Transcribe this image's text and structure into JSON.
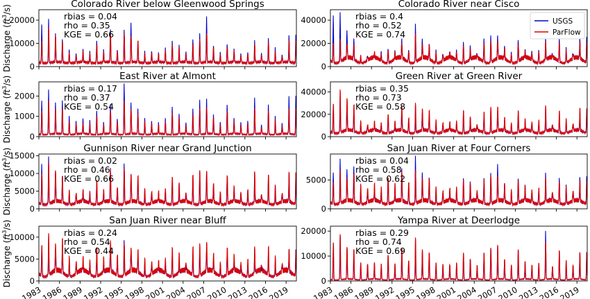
{
  "chart_data": {
    "type": "line",
    "x_ticks": [
      "1983",
      "1986",
      "1989",
      "1992",
      "1995",
      "1998",
      "2001",
      "2004",
      "2007",
      "2010",
      "2013",
      "2016",
      "2019"
    ],
    "x_range": [
      1983,
      2020.5
    ],
    "ylabel": "Discharge (ft³/s)",
    "ylabel_main": "Discharge (",
    "ylabel_unit": "ft",
    "ylabel_exp": "3",
    "ylabel_tail": "/s)",
    "legend": {
      "placement": "top-right",
      "entries": [
        {
          "name": "USGS",
          "color": "#0000cc"
        },
        {
          "name": "ParFlow",
          "color": "#dd0000"
        }
      ]
    },
    "panels": [
      {
        "title": "Colorado River below Gleenwood Springs",
        "ylim": [
          0,
          24500
        ],
        "yticks": [
          0,
          10000,
          20000
        ],
        "ytick_labels": [
          "0",
          "10000",
          "20000"
        ],
        "stats": [
          "rbias = 0.04",
          "rho = 0.35",
          "KGE = 0.66"
        ],
        "usgs_peaks": [
          18500,
          20200,
          14500,
          12000,
          7000,
          6000,
          7500,
          6500,
          11500,
          7200,
          16000,
          7500,
          15500,
          19200,
          11000,
          6500,
          7000,
          6000,
          8000,
          11500,
          9000,
          6500,
          12000,
          14000,
          22000,
          9000,
          6000,
          10000,
          7500,
          5500,
          6500,
          11000,
          6000,
          12500,
          8000,
          5500,
          13500
        ],
        "parflow_peaks": [
          12000,
          18000,
          15000,
          11500,
          6000,
          5500,
          7000,
          6000,
          10500,
          6500,
          15500,
          7000,
          15000,
          14500,
          12000,
          6000,
          6500,
          5500,
          7500,
          10500,
          8500,
          6000,
          10500,
          12500,
          16000,
          8500,
          5500,
          9000,
          7000,
          5000,
          6000,
          10000,
          5500,
          11500,
          7000,
          5000,
          12000
        ],
        "base": [
          1500,
          2000
        ]
      },
      {
        "title": "Colorado River near Cisco",
        "ylim": [
          0,
          49000
        ],
        "yticks": [
          0,
          20000,
          40000
        ],
        "ytick_labels": [
          "0",
          "20000",
          "40000"
        ],
        "stats": [
          "rbias = 0.4",
          "rho = 0.52",
          "KGE = 0.74"
        ],
        "usgs_peaks": [
          45000,
          46000,
          32000,
          25000,
          9000,
          10000,
          11000,
          12500,
          16000,
          13000,
          24000,
          15000,
          36000,
          25000,
          20000,
          14000,
          12000,
          12000,
          14000,
          22000,
          17000,
          11000,
          25000,
          26000,
          28000,
          18000,
          12000,
          24000,
          14000,
          13000,
          15000,
          24000,
          11000,
          25000,
          16000,
          12000,
          25000
        ],
        "parflow_peaks": [
          22000,
          25000,
          22000,
          20000,
          10000,
          9000,
          12000,
          11000,
          15000,
          12000,
          22000,
          14000,
          30000,
          22000,
          19000,
          13000,
          11000,
          11000,
          13000,
          20000,
          15000,
          10000,
          22000,
          23000,
          25000,
          16000,
          11000,
          21000,
          13000,
          12000,
          14000,
          22000,
          10000,
          22000,
          15000,
          11000,
          22000
        ],
        "base": [
          3000,
          8000
        ]
      },
      {
        "title": "East River at Almont",
        "ylim": [
          0,
          2700
        ],
        "yticks": [
          0,
          1000,
          2000
        ],
        "ytick_labels": [
          "0",
          "1000",
          "2000"
        ],
        "stats": [
          "rbias = 0.17",
          "rho = 0.37",
          "KGE = 0.54"
        ],
        "usgs_peaks": [
          1800,
          2300,
          1700,
          1800,
          1000,
          800,
          900,
          800,
          1300,
          700,
          1600,
          900,
          2600,
          1700,
          1400,
          900,
          800,
          700,
          900,
          1500,
          1100,
          700,
          1400,
          1800,
          1900,
          1100,
          700,
          1600,
          900,
          700,
          800,
          1900,
          600,
          1600,
          1000,
          700,
          2000
        ],
        "parflow_peaks": [
          1400,
          1900,
          1500,
          1500,
          800,
          700,
          700,
          700,
          1100,
          600,
          1400,
          800,
          1900,
          1500,
          1200,
          800,
          700,
          600,
          800,
          1300,
          1000,
          600,
          1200,
          1500,
          1600,
          1000,
          600,
          1400,
          800,
          600,
          700,
          1500,
          500,
          1400,
          900,
          600,
          1500
        ],
        "base": [
          100,
          150
        ]
      },
      {
        "title": "Green River at Green River",
        "ylim": [
          0,
          49000
        ],
        "yticks": [
          0,
          20000,
          40000
        ],
        "ytick_labels": [
          "0",
          "20000",
          "40000"
        ],
        "stats": [
          "rbias = 0.35",
          "rho = 0.73",
          "KGE = 0.58"
        ],
        "usgs_peaks": [
          30000,
          36000,
          28000,
          25000,
          12000,
          10000,
          11000,
          12000,
          18000,
          12000,
          24000,
          15000,
          27000,
          22000,
          20000,
          13000,
          12000,
          11000,
          13000,
          21000,
          15000,
          10000,
          20000,
          23000,
          24000,
          15000,
          11000,
          21000,
          13000,
          12000,
          13000,
          25000,
          10000,
          20000,
          14000,
          11000,
          22000
        ],
        "parflow_peaks": [
          32000,
          45000,
          38000,
          31000,
          15000,
          12000,
          14000,
          13000,
          22000,
          14000,
          30000,
          18000,
          32000,
          28000,
          25000,
          16000,
          14000,
          13000,
          15000,
          26000,
          18000,
          12000,
          24000,
          28000,
          30000,
          18000,
          13000,
          26000,
          16000,
          14000,
          16000,
          29000,
          12000,
          25000,
          17000,
          13000,
          27000
        ],
        "base": [
          3000,
          6000
        ]
      },
      {
        "title": "Gunnison River near Grand Junction",
        "ylim": [
          0,
          15500
        ],
        "yticks": [
          0,
          5000,
          10000,
          15000
        ],
        "ytick_labels": [
          "0",
          "5000",
          "10000",
          "15000"
        ],
        "stats": [
          "rbias = 0.02",
          "rho = 0.46",
          "KGE = 0.66"
        ],
        "usgs_peaks": [
          13000,
          14500,
          11000,
          9500,
          5000,
          4500,
          5000,
          4800,
          8000,
          5000,
          11500,
          6000,
          12500,
          10000,
          9000,
          5500,
          5000,
          4500,
          5500,
          9000,
          7000,
          4500,
          9500,
          10500,
          11000,
          7000,
          4500,
          9500,
          6000,
          4500,
          5500,
          10000,
          4000,
          9500,
          6500,
          4500,
          10000
        ],
        "parflow_peaks": [
          11000,
          14000,
          12000,
          10000,
          5500,
          5000,
          5500,
          5000,
          9000,
          5500,
          12000,
          6500,
          12000,
          11000,
          10000,
          6000,
          5500,
          5000,
          6000,
          10000,
          7500,
          5000,
          10500,
          11500,
          12000,
          7500,
          5000,
          10500,
          6500,
          5000,
          6000,
          11000,
          4500,
          10500,
          7000,
          5000,
          11000
        ],
        "base": [
          1200,
          2200
        ]
      },
      {
        "title": "San Juan River at Four Corners",
        "ylim": [
          0,
          9500
        ],
        "yticks": [
          0,
          5000
        ],
        "ytick_labels": [
          "0",
          "5000"
        ],
        "stats": [
          "rbias = 0.04",
          "rho = 0.58",
          "KGE = 0.62"
        ],
        "usgs_peaks": [
          6500,
          8500,
          7000,
          7500,
          3500,
          3000,
          3500,
          3200,
          5500,
          3500,
          7000,
          4000,
          9000,
          6500,
          5500,
          3500,
          3000,
          3000,
          3500,
          5500,
          4500,
          3000,
          5500,
          6000,
          8000,
          4500,
          3000,
          5500,
          4000,
          3000,
          3500,
          6000,
          2800,
          5500,
          4000,
          3000,
          5500
        ],
        "parflow_peaks": [
          5000,
          7000,
          6000,
          6500,
          4500,
          4000,
          4500,
          4000,
          6000,
          4500,
          7000,
          5000,
          7000,
          6000,
          5500,
          4000,
          3500,
          3500,
          4000,
          5500,
          4500,
          3500,
          5500,
          6000,
          6500,
          4500,
          3500,
          5500,
          4000,
          3500,
          4000,
          5500,
          3200,
          5000,
          4000,
          3500,
          5000
        ],
        "base": [
          800,
          1500
        ]
      },
      {
        "title": "San Juan River near Bluff",
        "ylim": [
          0,
          12500
        ],
        "yticks": [
          0,
          5000,
          10000
        ],
        "ytick_labels": [
          "0",
          "5000",
          "10000"
        ],
        "stats": [
          "rbias = 0.24",
          "rho = 0.54",
          "KGE = 0.44"
        ],
        "usgs_peaks": [
          8000,
          9500,
          7500,
          8500,
          4500,
          3500,
          4000,
          3800,
          6500,
          4000,
          8000,
          5000,
          9000,
          7000,
          6000,
          4000,
          3500,
          3500,
          4000,
          6500,
          5000,
          3500,
          6500,
          7000,
          7500,
          5000,
          3500,
          6500,
          4500,
          3500,
          4000,
          7000,
          3000,
          6500,
          4500,
          3500,
          7000
        ],
        "parflow_peaks": [
          9000,
          11500,
          9500,
          10500,
          6000,
          5000,
          5500,
          5000,
          8500,
          5500,
          10000,
          6500,
          9000,
          8500,
          7500,
          5500,
          5000,
          4500,
          5500,
          8500,
          6500,
          4500,
          8500,
          9000,
          10000,
          6500,
          4500,
          8500,
          6000,
          4500,
          5500,
          8000,
          4000,
          8500,
          6000,
          4500,
          7500
        ],
        "base": [
          1000,
          2500
        ]
      },
      {
        "title": "Yampa River at Deerlodge",
        "ylim": [
          0,
          22000
        ],
        "yticks": [
          0,
          10000,
          20000
        ],
        "ytick_labels": [
          "0",
          "10000",
          "20000"
        ],
        "stats": [
          "rbias = 0.29",
          "rho = 0.74",
          "KGE = 0.69"
        ],
        "usgs_peaks": [
          15500,
          18000,
          13000,
          12000,
          7000,
          6500,
          7000,
          6500,
          10000,
          6500,
          12500,
          8000,
          16000,
          12000,
          11000,
          7000,
          6500,
          6000,
          7000,
          11000,
          8500,
          6000,
          11000,
          13000,
          14000,
          8500,
          6000,
          12500,
          7500,
          6000,
          7000,
          20000,
          5500,
          12000,
          8000,
          6000,
          11500
        ],
        "parflow_peaks": [
          17000,
          20500,
          15000,
          14000,
          8000,
          7500,
          8000,
          7500,
          11500,
          7500,
          14500,
          9000,
          19000,
          14000,
          12500,
          8000,
          7500,
          7000,
          8000,
          12500,
          9500,
          7000,
          12500,
          14500,
          16000,
          9500,
          7000,
          14000,
          8500,
          7000,
          8000,
          17000,
          6500,
          13500,
          9000,
          7000,
          12500
        ],
        "base": [
          400,
          800
        ]
      }
    ]
  }
}
